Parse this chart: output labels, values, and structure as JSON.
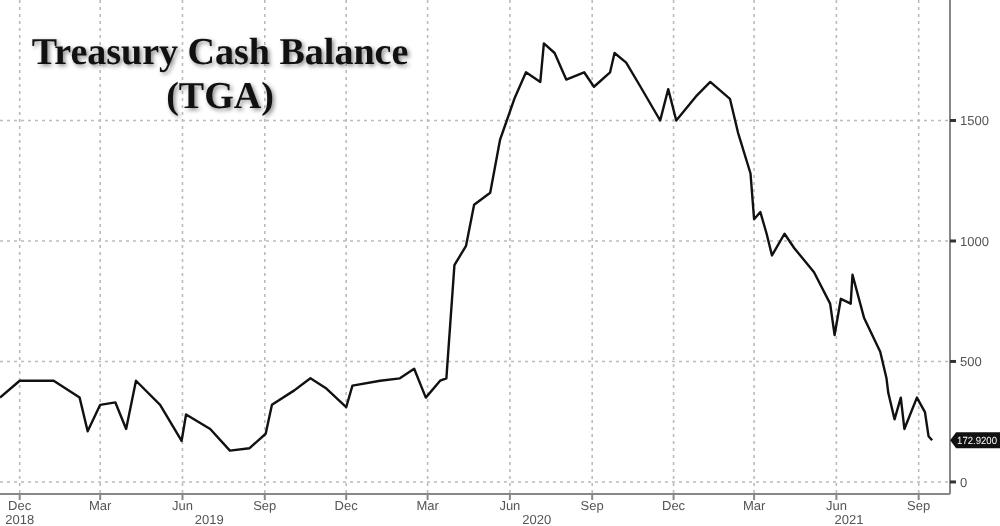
{
  "chart_data": {
    "type": "line",
    "title": "Treasury Cash Balance\n(TGA)",
    "x": [
      "2018-11-09",
      "2018-12-01",
      "2019-01-08",
      "2019-02-06",
      "2019-02-15",
      "2019-03-01",
      "2019-03-18",
      "2019-03-30",
      "2019-04-10",
      "2019-05-07",
      "2019-05-31",
      "2019-06-05",
      "2019-07-02",
      "2019-07-24",
      "2019-08-15",
      "2019-09-02",
      "2019-09-09",
      "2019-10-04",
      "2019-10-22",
      "2019-11-08",
      "2019-12-01",
      "2019-12-08",
      "2020-01-08",
      "2020-01-30",
      "2020-02-15",
      "2020-02-28",
      "2020-03-15",
      "2020-03-22",
      "2020-03-31",
      "2020-04-13",
      "2020-04-22",
      "2020-05-10",
      "2020-05-21",
      "2020-06-06",
      "2020-06-19",
      "2020-07-05",
      "2020-07-09",
      "2020-07-21",
      "2020-08-03",
      "2020-08-23",
      "2020-09-03",
      "2020-09-21",
      "2020-09-26",
      "2020-10-09",
      "2020-10-25",
      "2020-11-16",
      "2020-11-25",
      "2020-12-04",
      "2020-12-26",
      "2021-01-11",
      "2021-02-02",
      "2021-02-11",
      "2021-02-25",
      "2021-03-01",
      "2021-03-08",
      "2021-03-15",
      "2021-03-21",
      "2021-04-04",
      "2021-04-15",
      "2021-05-07",
      "2021-05-25",
      "2021-05-30",
      "2021-06-06",
      "2021-06-17",
      "2021-06-19",
      "2021-07-02",
      "2021-07-20",
      "2021-07-27",
      "2021-07-29",
      "2021-08-05",
      "2021-08-12",
      "2021-08-16",
      "2021-08-30",
      "2021-09-08",
      "2021-09-12",
      "2021-09-16"
    ],
    "series": [
      {
        "color": "#111111",
        "values": [
          350,
          420,
          420,
          350,
          210,
          320,
          330,
          220,
          420,
          320,
          170,
          280,
          220,
          130,
          140,
          200,
          320,
          380,
          430,
          390,
          310,
          400,
          420,
          430,
          470,
          350,
          420,
          430,
          900,
          980,
          1150,
          1200,
          1420,
          1590,
          1700,
          1660,
          1820,
          1780,
          1670,
          1700,
          1640,
          1700,
          1780,
          1740,
          1640,
          1500,
          1630,
          1500,
          1600,
          1660,
          1590,
          1450,
          1280,
          1090,
          1120,
          1030,
          940,
          1030,
          970,
          870,
          740,
          610,
          760,
          740,
          860,
          680,
          540,
          430,
          370,
          260,
          350,
          220,
          350,
          290,
          190,
          172.92
        ]
      }
    ],
    "xlim": [
      "2018-11-09",
      "2021-10-06"
    ],
    "xticks": [
      {
        "value": "2018-12-01",
        "label": "Dec"
      },
      {
        "value": "2019-03-01",
        "label": "Mar"
      },
      {
        "value": "2019-06-01",
        "label": "Jun"
      },
      {
        "value": "2019-09-01",
        "label": "Sep"
      },
      {
        "value": "2019-12-01",
        "label": "Dec"
      },
      {
        "value": "2020-03-01",
        "label": "Mar"
      },
      {
        "value": "2020-06-01",
        "label": "Jun"
      },
      {
        "value": "2020-09-01",
        "label": "Sep"
      },
      {
        "value": "2020-12-01",
        "label": "Dec"
      },
      {
        "value": "2021-03-01",
        "label": "Mar"
      },
      {
        "value": "2021-06-01",
        "label": "Jun"
      },
      {
        "value": "2021-09-01",
        "label": "Sep"
      }
    ],
    "x2lim": [
      "2018-11-09",
      "2021-10-06"
    ],
    "x2ticks": [
      {
        "value": "2018-12-01",
        "label": "2018"
      },
      {
        "value": "2019-07-01",
        "label": "2019"
      },
      {
        "value": "2020-07-01",
        "label": "2020"
      },
      {
        "value": "2021-06-15",
        "label": "2021"
      }
    ],
    "ylim": [
      -50,
      2000
    ],
    "yticks": [
      0,
      500,
      1000,
      1500
    ],
    "grid": true,
    "line_style": "solid",
    "marker": "none",
    "annotations": [
      {
        "text": "172.9200",
        "x": "2021-09-16",
        "y": 172.92
      }
    ]
  }
}
